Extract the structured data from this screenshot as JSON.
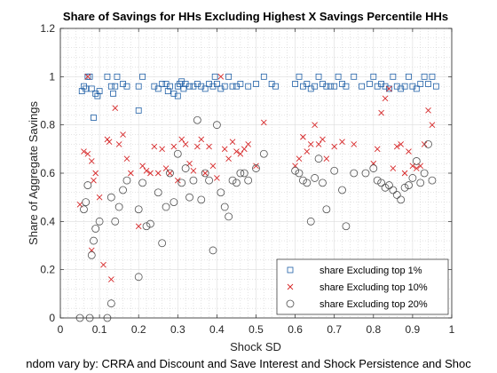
{
  "chart_data": {
    "type": "scatter",
    "title": "Share of Savings for HHs Excluding Highest X Savings Percentile HHs",
    "xlabel": "Shock SD",
    "ylabel": "Share of Aggregate Savings",
    "caption": "ndom vary by: CRRA and Discount and Save Interest and Shock Persistence and Shoc",
    "xlim": [
      0,
      1
    ],
    "ylim": [
      0,
      1.2
    ],
    "xticks": [
      "0",
      "0.1",
      "0.2",
      "0.3",
      "0.4",
      "0.5",
      "0.6",
      "0.7",
      "0.8",
      "0.9",
      "1"
    ],
    "yticks": [
      "0",
      "0.2",
      "0.4",
      "0.6",
      "0.8",
      "1",
      "1.2"
    ],
    "grid": "major-and-minor",
    "legend_location": "bottom-right",
    "colors": {
      "top1": "#1f5fa6",
      "top10": "#d62728",
      "top20": "#505050"
    },
    "series": [
      {
        "name": "share Excluding top 1%",
        "marker": "square",
        "points": [
          [
            0.055,
            0.94
          ],
          [
            0.06,
            0.96
          ],
          [
            0.065,
            0.95
          ],
          [
            0.07,
            1.0
          ],
          [
            0.075,
            1.0
          ],
          [
            0.08,
            0.95
          ],
          [
            0.085,
            0.83
          ],
          [
            0.09,
            0.93
          ],
          [
            0.095,
            0.92
          ],
          [
            0.1,
            0.94
          ],
          [
            0.12,
            1.0
          ],
          [
            0.13,
            0.96
          ],
          [
            0.135,
            0.93
          ],
          [
            0.14,
            0.96
          ],
          [
            0.145,
            1.0
          ],
          [
            0.16,
            0.97
          ],
          [
            0.17,
            0.96
          ],
          [
            0.2,
            0.86
          ],
          [
            0.2,
            0.96
          ],
          [
            0.21,
            1.0
          ],
          [
            0.24,
            0.96
          ],
          [
            0.25,
            0.95
          ],
          [
            0.26,
            0.97
          ],
          [
            0.27,
            0.97
          ],
          [
            0.275,
            0.94
          ],
          [
            0.28,
            0.96
          ],
          [
            0.29,
            0.93
          ],
          [
            0.3,
            0.92
          ],
          [
            0.3,
            0.96
          ],
          [
            0.305,
            0.97
          ],
          [
            0.31,
            0.98
          ],
          [
            0.315,
            0.95
          ],
          [
            0.32,
            0.97
          ],
          [
            0.33,
            0.96
          ],
          [
            0.34,
            0.96
          ],
          [
            0.35,
            0.97
          ],
          [
            0.36,
            0.96
          ],
          [
            0.37,
            0.95
          ],
          [
            0.38,
            0.97
          ],
          [
            0.39,
            0.96
          ],
          [
            0.395,
            1.0
          ],
          [
            0.4,
            0.97
          ],
          [
            0.41,
            0.95
          ],
          [
            0.42,
            0.96
          ],
          [
            0.43,
            1.0
          ],
          [
            0.44,
            0.96
          ],
          [
            0.45,
            0.96
          ],
          [
            0.46,
            0.97
          ],
          [
            0.48,
            0.96
          ],
          [
            0.5,
            0.97
          ],
          [
            0.52,
            1.0
          ],
          [
            0.54,
            0.97
          ],
          [
            0.55,
            0.96
          ],
          [
            0.6,
            0.97
          ],
          [
            0.61,
            1.0
          ],
          [
            0.62,
            0.96
          ],
          [
            0.63,
            0.97
          ],
          [
            0.64,
            0.95
          ],
          [
            0.65,
            0.96
          ],
          [
            0.66,
            1.0
          ],
          [
            0.67,
            0.97
          ],
          [
            0.68,
            0.96
          ],
          [
            0.69,
            0.96
          ],
          [
            0.7,
            0.96
          ],
          [
            0.71,
            1.0
          ],
          [
            0.72,
            0.97
          ],
          [
            0.73,
            0.96
          ],
          [
            0.75,
            1.0
          ],
          [
            0.77,
            0.96
          ],
          [
            0.79,
            0.97
          ],
          [
            0.8,
            1.0
          ],
          [
            0.81,
            0.96
          ],
          [
            0.82,
            0.97
          ],
          [
            0.83,
            0.96
          ],
          [
            0.84,
            0.95
          ],
          [
            0.85,
            1.0
          ],
          [
            0.86,
            0.96
          ],
          [
            0.87,
            0.95
          ],
          [
            0.88,
            0.96
          ],
          [
            0.89,
            1.0
          ],
          [
            0.9,
            0.96
          ],
          [
            0.91,
            0.95
          ],
          [
            0.92,
            0.97
          ],
          [
            0.93,
            1.0
          ],
          [
            0.94,
            0.97
          ],
          [
            0.95,
            1.0
          ],
          [
            0.96,
            0.96
          ]
        ]
      },
      {
        "name": "share Excluding top 10%",
        "marker": "x",
        "points": [
          [
            0.05,
            0.47
          ],
          [
            0.06,
            0.69
          ],
          [
            0.07,
            0.68
          ],
          [
            0.07,
            1.0
          ],
          [
            0.08,
            0.65
          ],
          [
            0.08,
            0.28
          ],
          [
            0.085,
            0.57
          ],
          [
            0.09,
            0.6
          ],
          [
            0.1,
            0.5
          ],
          [
            0.11,
            0.22
          ],
          [
            0.12,
            0.74
          ],
          [
            0.125,
            0.73
          ],
          [
            0.13,
            0.16
          ],
          [
            0.14,
            0.87
          ],
          [
            0.15,
            0.72
          ],
          [
            0.16,
            0.76
          ],
          [
            0.17,
            0.66
          ],
          [
            0.18,
            0.6
          ],
          [
            0.2,
            0.38
          ],
          [
            0.21,
            0.63
          ],
          [
            0.22,
            0.61
          ],
          [
            0.23,
            0.6
          ],
          [
            0.24,
            0.71
          ],
          [
            0.25,
            0.6
          ],
          [
            0.26,
            0.7
          ],
          [
            0.27,
            0.62
          ],
          [
            0.28,
            0.6
          ],
          [
            0.29,
            0.71
          ],
          [
            0.3,
            0.57
          ],
          [
            0.31,
            0.74
          ],
          [
            0.32,
            0.72
          ],
          [
            0.33,
            0.64
          ],
          [
            0.34,
            0.61
          ],
          [
            0.35,
            0.71
          ],
          [
            0.36,
            0.74
          ],
          [
            0.37,
            0.6
          ],
          [
            0.38,
            0.71
          ],
          [
            0.39,
            0.63
          ],
          [
            0.4,
            0.58
          ],
          [
            0.41,
            1.0
          ],
          [
            0.42,
            0.7
          ],
          [
            0.43,
            0.66
          ],
          [
            0.44,
            0.73
          ],
          [
            0.45,
            0.69
          ],
          [
            0.46,
            0.68
          ],
          [
            0.47,
            0.7
          ],
          [
            0.48,
            0.72
          ],
          [
            0.5,
            0.63
          ],
          [
            0.52,
            0.81
          ],
          [
            0.6,
            0.63
          ],
          [
            0.61,
            0.66
          ],
          [
            0.62,
            0.75
          ],
          [
            0.63,
            0.69
          ],
          [
            0.64,
            0.72
          ],
          [
            0.65,
            0.8
          ],
          [
            0.66,
            0.72
          ],
          [
            0.67,
            0.74
          ],
          [
            0.68,
            0.66
          ],
          [
            0.7,
            0.71
          ],
          [
            0.72,
            0.73
          ],
          [
            0.75,
            0.72
          ],
          [
            0.8,
            0.64
          ],
          [
            0.81,
            0.7
          ],
          [
            0.82,
            0.85
          ],
          [
            0.83,
            0.91
          ],
          [
            0.84,
            0.95
          ],
          [
            0.85,
            0.62
          ],
          [
            0.86,
            0.71
          ],
          [
            0.87,
            0.72
          ],
          [
            0.88,
            0.6
          ],
          [
            0.89,
            0.69
          ],
          [
            0.9,
            0.63
          ],
          [
            0.91,
            0.62
          ],
          [
            0.92,
            0.63
          ],
          [
            0.93,
            0.72
          ],
          [
            0.94,
            0.86
          ],
          [
            0.95,
            0.8
          ]
        ]
      },
      {
        "name": "share Excluding top 20%",
        "marker": "circle",
        "points": [
          [
            0.05,
            0.0
          ],
          [
            0.06,
            0.45
          ],
          [
            0.065,
            0.48
          ],
          [
            0.07,
            0.55
          ],
          [
            0.075,
            0.0
          ],
          [
            0.08,
            0.26
          ],
          [
            0.085,
            0.32
          ],
          [
            0.09,
            0.37
          ],
          [
            0.1,
            0.4
          ],
          [
            0.12,
            0.0
          ],
          [
            0.13,
            0.06
          ],
          [
            0.13,
            0.5
          ],
          [
            0.14,
            0.4
          ],
          [
            0.15,
            0.46
          ],
          [
            0.16,
            0.53
          ],
          [
            0.17,
            0.57
          ],
          [
            0.2,
            0.17
          ],
          [
            0.2,
            0.45
          ],
          [
            0.21,
            0.56
          ],
          [
            0.22,
            0.38
          ],
          [
            0.23,
            0.39
          ],
          [
            0.25,
            0.52
          ],
          [
            0.26,
            0.31
          ],
          [
            0.27,
            0.46
          ],
          [
            0.28,
            0.6
          ],
          [
            0.29,
            0.48
          ],
          [
            0.3,
            0.68
          ],
          [
            0.31,
            0.56
          ],
          [
            0.32,
            0.62
          ],
          [
            0.33,
            0.5
          ],
          [
            0.34,
            0.57
          ],
          [
            0.35,
            0.82
          ],
          [
            0.36,
            0.49
          ],
          [
            0.37,
            0.6
          ],
          [
            0.38,
            0.57
          ],
          [
            0.39,
            0.28
          ],
          [
            0.4,
            0.8
          ],
          [
            0.41,
            0.52
          ],
          [
            0.42,
            0.46
          ],
          [
            0.43,
            0.42
          ],
          [
            0.44,
            0.57
          ],
          [
            0.45,
            0.56
          ],
          [
            0.46,
            0.6
          ],
          [
            0.47,
            0.6
          ],
          [
            0.48,
            0.57
          ],
          [
            0.5,
            0.62
          ],
          [
            0.52,
            0.68
          ],
          [
            0.6,
            0.61
          ],
          [
            0.61,
            0.6
          ],
          [
            0.62,
            0.57
          ],
          [
            0.63,
            0.56
          ],
          [
            0.64,
            0.4
          ],
          [
            0.65,
            0.58
          ],
          [
            0.66,
            0.66
          ],
          [
            0.67,
            0.56
          ],
          [
            0.68,
            0.45
          ],
          [
            0.7,
            0.61
          ],
          [
            0.72,
            0.53
          ],
          [
            0.73,
            0.38
          ],
          [
            0.75,
            0.6
          ],
          [
            0.78,
            0.6
          ],
          [
            0.8,
            0.62
          ],
          [
            0.81,
            0.57
          ],
          [
            0.82,
            0.56
          ],
          [
            0.83,
            0.54
          ],
          [
            0.84,
            0.55
          ],
          [
            0.85,
            0.53
          ],
          [
            0.86,
            0.51
          ],
          [
            0.87,
            0.49
          ],
          [
            0.88,
            0.54
          ],
          [
            0.89,
            0.55
          ],
          [
            0.9,
            0.58
          ],
          [
            0.91,
            0.65
          ],
          [
            0.92,
            0.56
          ],
          [
            0.93,
            0.6
          ],
          [
            0.94,
            0.72
          ],
          [
            0.95,
            0.57
          ]
        ]
      }
    ]
  }
}
